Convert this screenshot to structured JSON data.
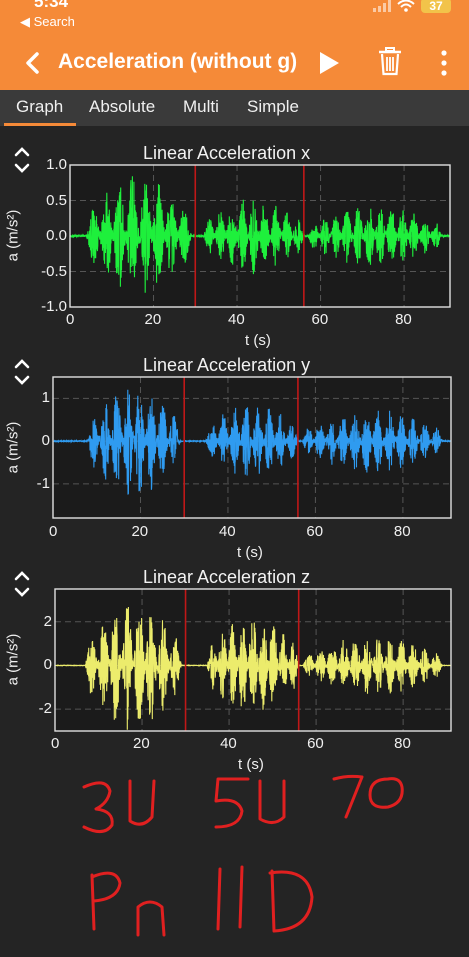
{
  "status": {
    "time": "5:34",
    "back_label": "◀ Search",
    "battery": "37"
  },
  "header": {
    "title": "Acceleration (without g)"
  },
  "tabs": [
    {
      "label": "Graph",
      "active": true
    },
    {
      "label": "Absolute",
      "active": false
    },
    {
      "label": "Multi",
      "active": false
    },
    {
      "label": "Simple",
      "active": false
    }
  ],
  "colors": {
    "accent": "#f58a38",
    "x_series": "#1ef03c",
    "y_series": "#2f9bf0",
    "z_series": "#ecec6c",
    "marker": "#c01818",
    "handwriting": "#e02020"
  },
  "handwriting": {
    "line1": "30 50 70",
    "line2": "Pn 11D"
  },
  "chart_data": [
    {
      "type": "line",
      "title": "Linear Acceleration x",
      "xlabel": "t (s)",
      "ylabel": "a (m/s²)",
      "xlim": [
        0,
        91
      ],
      "ylim": [
        -1.0,
        1.0
      ],
      "xticks": [
        20,
        40,
        60,
        80
      ],
      "yticks": [
        1.0,
        0.5,
        0.0,
        -0.5,
        -1.0
      ],
      "ytick_labels": [
        "1.0",
        "0.5",
        "0.0",
        "-0.5",
        "-1.0"
      ],
      "x0_label": "0",
      "grid": true,
      "markers_t": [
        30,
        56
      ],
      "series": [
        {
          "color": "#1ef03c",
          "bursts": [
            {
              "start": 4,
              "end": 29,
              "amp": 0.88,
              "peaks": 8
            },
            {
              "start": 32,
              "end": 56,
              "amp": 0.55,
              "peaks": 9
            },
            {
              "start": 57,
              "end": 89,
              "amp": 0.45,
              "peaks": 12
            }
          ]
        }
      ]
    },
    {
      "type": "line",
      "title": "Linear Acceleration y",
      "xlabel": "t (s)",
      "ylabel": "a (m/s²)",
      "xlim": [
        0,
        91
      ],
      "ylim": [
        -1.8,
        1.5
      ],
      "xticks": [
        0,
        20,
        40,
        60,
        80
      ],
      "yticks": [
        1,
        0,
        -1
      ],
      "ytick_labels": [
        "1",
        "0",
        "-1"
      ],
      "grid": true,
      "markers_t": [
        30,
        56
      ],
      "series": [
        {
          "color": "#2f9bf0",
          "bursts": [
            {
              "start": 8,
              "end": 29,
              "amp": 1.3,
              "peaks": 8
            },
            {
              "start": 35,
              "end": 56,
              "amp": 0.9,
              "peaks": 8
            },
            {
              "start": 57,
              "end": 89,
              "amp": 0.75,
              "peaks": 12
            }
          ]
        }
      ]
    },
    {
      "type": "line",
      "title": "Linear Acceleration z",
      "xlabel": "t (s)",
      "ylabel": "a (m/s²)",
      "xlim": [
        0,
        91
      ],
      "ylim": [
        -3.0,
        3.5
      ],
      "xticks": [
        0,
        20,
        40,
        60,
        80
      ],
      "yticks": [
        2,
        0,
        -2
      ],
      "ytick_labels": [
        "2",
        "0",
        "-2"
      ],
      "grid": true,
      "markers_t": [
        30,
        56
      ],
      "series": [
        {
          "color": "#ecec6c",
          "bursts": [
            {
              "start": 7,
              "end": 29,
              "amp": 3.0,
              "peaks": 8
            },
            {
              "start": 35,
              "end": 56,
              "amp": 2.4,
              "peaks": 9
            },
            {
              "start": 57,
              "end": 89,
              "amp": 1.4,
              "peaks": 12
            }
          ]
        }
      ]
    }
  ]
}
